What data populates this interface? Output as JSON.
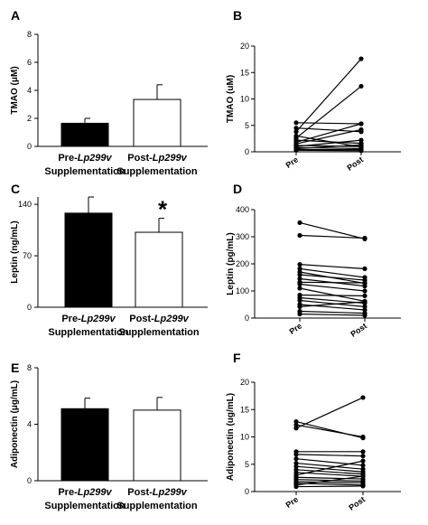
{
  "chart_data": [
    {
      "panel": "A",
      "type": "bar",
      "ylabel": "TMAO (μM)",
      "ylim": [
        0,
        8
      ],
      "yticks": [
        "0",
        "2",
        "4",
        "6",
        "8"
      ],
      "categories": [
        {
          "name": "Pre-",
          "italic": "Lp299v",
          "sub": "Supplementation"
        },
        {
          "name": "Post-",
          "italic": "Lp299v",
          "sub": "Supplementation"
        }
      ],
      "values": [
        1.65,
        3.35
      ],
      "errors": [
        0.35,
        1.05
      ],
      "fills": [
        "#000000",
        "#ffffff"
      ],
      "annotation": ""
    },
    {
      "panel": "B",
      "type": "line",
      "ylabel": "TMAO (uM)",
      "ylim": [
        0,
        20
      ],
      "yticks": [
        "0",
        "5",
        "10",
        "15",
        "20"
      ],
      "x": [
        "Pre",
        "Post"
      ],
      "series": [
        {
          "values": [
            5.5,
            5.3
          ]
        },
        {
          "values": [
            4.5,
            3.8
          ]
        },
        {
          "values": [
            3.8,
            17.6
          ]
        },
        {
          "values": [
            3.0,
            0.9
          ]
        },
        {
          "values": [
            2.6,
            12.4
          ]
        },
        {
          "values": [
            2.2,
            1.6
          ]
        },
        {
          "values": [
            1.8,
            5.3
          ]
        },
        {
          "values": [
            1.5,
            4.2
          ]
        },
        {
          "values": [
            1.2,
            1.0
          ]
        },
        {
          "values": [
            1.0,
            2.2
          ]
        },
        {
          "values": [
            0.8,
            0.6
          ]
        },
        {
          "values": [
            0.6,
            1.3
          ]
        },
        {
          "values": [
            0.4,
            0.4
          ]
        },
        {
          "values": [
            0.3,
            0.2
          ]
        }
      ]
    },
    {
      "panel": "C",
      "type": "bar",
      "ylabel": "Leptin (ng/mL)",
      "ylim": [
        0,
        150
      ],
      "yticks": [
        "0",
        "70",
        "140"
      ],
      "tick_values": [
        0,
        70,
        140
      ],
      "categories": [
        {
          "name": "Pre-",
          "italic": "Lp299v",
          "sub": "Supplementation"
        },
        {
          "name": "Post-",
          "italic": "Lp299v",
          "sub": "Supplementation"
        }
      ],
      "values": [
        128,
        102
      ],
      "errors": [
        22,
        19
      ],
      "fills": [
        "#000000",
        "#ffffff"
      ],
      "annotation": "*"
    },
    {
      "panel": "D",
      "type": "line",
      "ylabel": "Leptin (pg/mL)",
      "ylim": [
        0,
        400
      ],
      "yticks": [
        "0",
        "100",
        "200",
        "300",
        "400"
      ],
      "x": [
        "Pre",
        "Post"
      ],
      "series": [
        {
          "values": [
            352,
            292
          ]
        },
        {
          "values": [
            305,
            295
          ]
        },
        {
          "values": [
            198,
            182
          ]
        },
        {
          "values": [
            182,
            150
          ]
        },
        {
          "values": [
            170,
            128
          ]
        },
        {
          "values": [
            160,
            140
          ]
        },
        {
          "values": [
            145,
            118
          ]
        },
        {
          "values": [
            132,
            130
          ]
        },
        {
          "values": [
            125,
            100
          ]
        },
        {
          "values": [
            110,
            62
          ]
        },
        {
          "values": [
            85,
            82
          ]
        },
        {
          "values": [
            75,
            55
          ]
        },
        {
          "values": [
            65,
            42
          ]
        },
        {
          "values": [
            50,
            30
          ]
        },
        {
          "values": [
            42,
            60
          ]
        },
        {
          "values": [
            25,
            18
          ]
        },
        {
          "values": [
            15,
            10
          ]
        }
      ]
    },
    {
      "panel": "E",
      "type": "bar",
      "ylabel": "Adiponectin (μg/mL)",
      "ylim": [
        0,
        8
      ],
      "yticks": [
        "0",
        "4",
        "8"
      ],
      "tick_values": [
        0,
        4,
        8
      ],
      "categories": [
        {
          "name": "Pre-",
          "italic": "Lp299v",
          "sub": "Supplementation"
        },
        {
          "name": "Post-",
          "italic": "Lp299v",
          "sub": "Supplementation"
        }
      ],
      "values": [
        5.1,
        5.0
      ],
      "errors": [
        0.75,
        0.9
      ],
      "fills": [
        "#000000",
        "#ffffff"
      ],
      "annotation": ""
    },
    {
      "panel": "F",
      "type": "line",
      "ylabel": "Adiponectin (ug/mL)",
      "ylim": [
        0,
        20
      ],
      "yticks": [
        "0",
        "5",
        "10",
        "15",
        "20"
      ],
      "x": [
        "Pre",
        "Post"
      ],
      "series": [
        {
          "values": [
            12.8,
            9.8
          ]
        },
        {
          "values": [
            12.2,
            10.0
          ]
        },
        {
          "values": [
            11.6,
            17.2
          ]
        },
        {
          "values": [
            7.3,
            7.3
          ]
        },
        {
          "values": [
            6.8,
            6.5
          ]
        },
        {
          "values": [
            6.0,
            4.8
          ]
        },
        {
          "values": [
            5.2,
            4.1
          ]
        },
        {
          "values": [
            4.6,
            3.6
          ]
        },
        {
          "values": [
            4.0,
            3.2
          ]
        },
        {
          "values": [
            3.5,
            2.8
          ]
        },
        {
          "values": [
            3.0,
            5.6
          ]
        },
        {
          "values": [
            2.6,
            2.3
          ]
        },
        {
          "values": [
            2.2,
            1.9
          ]
        },
        {
          "values": [
            1.8,
            1.6
          ]
        },
        {
          "values": [
            1.5,
            1.2
          ]
        },
        {
          "values": [
            1.2,
            2.8
          ]
        },
        {
          "values": [
            0.9,
            1.0
          ]
        }
      ]
    }
  ]
}
